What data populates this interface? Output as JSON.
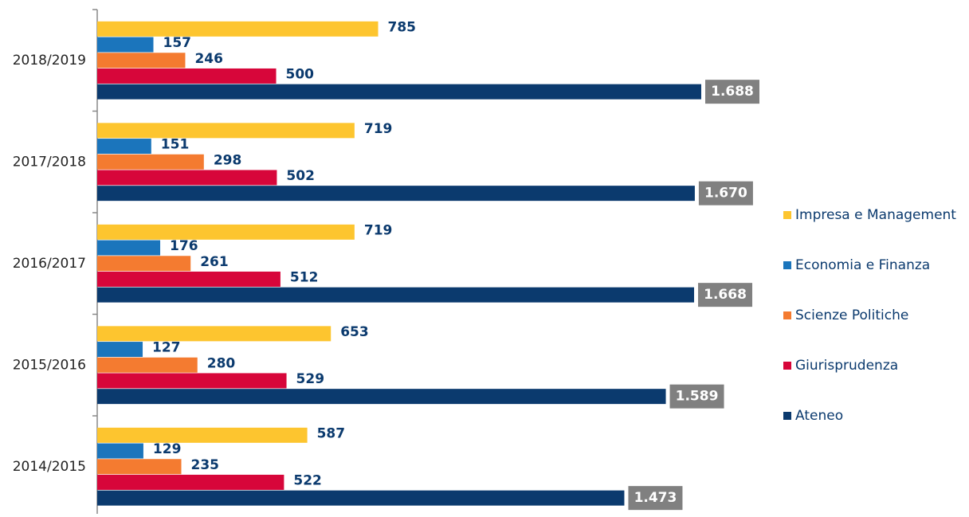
{
  "chart_data": {
    "type": "barh",
    "categories": [
      "2018/2019",
      "2017/2018",
      "2016/2017",
      "2015/2016",
      "2014/2015"
    ],
    "series": [
      {
        "name": "Impresa e Management",
        "color": "#fdc52f",
        "values": [
          785,
          719,
          719,
          653,
          587
        ]
      },
      {
        "name": "Economia e Finanza",
        "color": "#1b75bc",
        "values": [
          157,
          151,
          176,
          127,
          129
        ]
      },
      {
        "name": "Scienze Politiche",
        "color": "#f47b30",
        "values": [
          246,
          298,
          261,
          280,
          235
        ]
      },
      {
        "name": "Giurisprudenza",
        "color": "#d7063a",
        "values": [
          500,
          502,
          512,
          529,
          522
        ]
      },
      {
        "name": "Ateneo",
        "color": "#0b3a6e",
        "values": [
          1688,
          1670,
          1668,
          1589,
          1473
        ],
        "value_labels": [
          "1.688",
          "1.670",
          "1.668",
          "1.589",
          "1.473"
        ]
      }
    ],
    "legend": "right"
  }
}
